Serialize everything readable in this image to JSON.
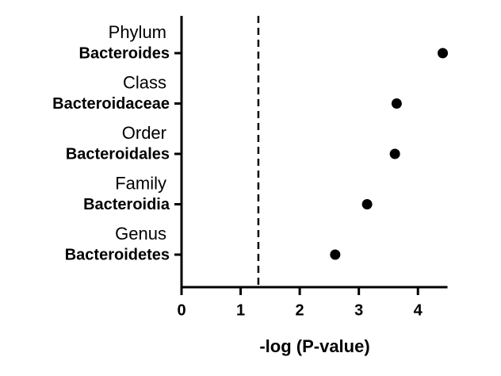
{
  "chart_data": {
    "type": "dot",
    "xlabel": "-log (P-value)",
    "groups": [
      "Phylum",
      "Class",
      "Order",
      "Family",
      "Genus"
    ],
    "categories": [
      "Bacteroides",
      "Bacteroidaceae",
      "Bacteroidales",
      "Bacteroidia",
      "Bacteroidetes"
    ],
    "values": [
      4.42,
      3.64,
      3.61,
      3.14,
      2.6
    ],
    "color": "#000000",
    "threshold": 1.3,
    "xlim": [
      0,
      4.5
    ],
    "xticks": [
      0,
      1,
      2,
      3,
      4
    ]
  }
}
